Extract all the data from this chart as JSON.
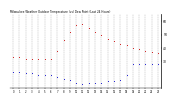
{
  "title": "Milwaukee Weather Outdoor Temperature (vs) Dew Point (Last 24 Hours)",
  "temp_x": [
    0,
    1,
    2,
    3,
    4,
    5,
    6,
    7,
    8,
    9,
    10,
    11,
    12,
    13,
    14,
    15,
    16,
    17,
    18,
    19,
    20,
    21,
    22,
    23
  ],
  "temp_y": [
    33,
    33,
    32,
    32,
    32,
    32,
    32,
    38,
    46,
    52,
    57,
    58,
    55,
    52,
    50,
    47,
    45,
    43,
    42,
    40,
    39,
    38,
    37,
    36
  ],
  "dew_x": [
    0,
    1,
    2,
    3,
    4,
    5,
    6,
    7,
    8,
    9,
    10,
    11,
    12,
    13,
    14,
    15,
    16,
    17,
    18,
    19,
    20,
    21,
    22,
    23
  ],
  "dew_y": [
    22,
    22,
    21,
    21,
    20,
    20,
    20,
    18,
    17,
    16,
    14,
    13,
    14,
    14,
    14,
    15,
    15,
    16,
    20,
    28,
    28,
    28,
    28,
    28
  ],
  "temp_color": "#cc0000",
  "dew_color": "#0000cc",
  "bg_color": "#ffffff",
  "grid_color": "#999999",
  "ylim_min": 10,
  "ylim_max": 65,
  "yticks": [
    30,
    40,
    50,
    60
  ],
  "xticks": [
    0,
    1,
    2,
    3,
    4,
    5,
    6,
    7,
    8,
    9,
    10,
    11,
    12,
    13,
    14,
    15,
    16,
    17,
    18,
    19,
    20,
    21,
    22,
    23
  ]
}
